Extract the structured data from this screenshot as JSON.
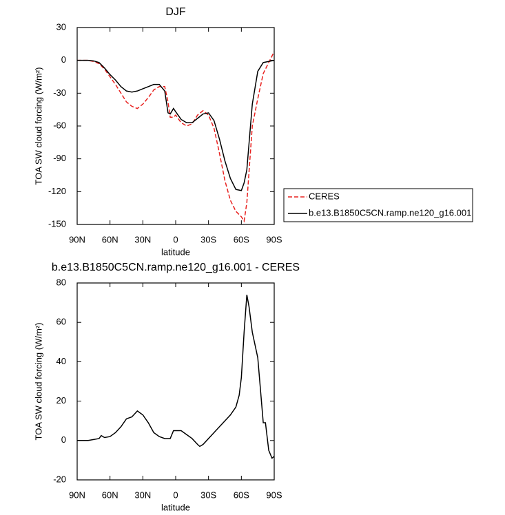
{
  "chart_data": [
    {
      "type": "line",
      "title": "DJF",
      "xlabel": "latitude",
      "ylabel": "TOA SW cloud forcing (W/m²)",
      "x": [
        90,
        85,
        80,
        75,
        70,
        65,
        60,
        55,
        50,
        45,
        40,
        35,
        30,
        25,
        20,
        15,
        10,
        7,
        5,
        2,
        0,
        -5,
        -10,
        -15,
        -20,
        -25,
        -30,
        -35,
        -40,
        -45,
        -50,
        -55,
        -60,
        -62.5,
        -65,
        -70,
        -75,
        -80,
        -85,
        -90
      ],
      "series": [
        {
          "name": "CERES",
          "color": "#e8211f",
          "dashed": true,
          "values": [
            0,
            0,
            0,
            -1,
            -3,
            -8,
            -15,
            -22,
            -30,
            -38,
            -42,
            -44,
            -40,
            -34,
            -27,
            -24,
            -24,
            -38,
            -52,
            -52,
            -50,
            -57,
            -60,
            -58,
            -50,
            -46,
            -50,
            -62,
            -85,
            -110,
            -128,
            -138,
            -143,
            -147,
            -130,
            -60,
            -35,
            -12,
            -2,
            8
          ]
        },
        {
          "name": "b.e13.B1850C5CN.ramp.ne120_g16.001",
          "color": "#000000",
          "dashed": false,
          "values": [
            0,
            0,
            0,
            -0.5,
            -2,
            -7,
            -13,
            -18,
            -24,
            -28,
            -29,
            -28,
            -26,
            -24,
            -22,
            -22,
            -28,
            -48,
            -49,
            -44,
            -47,
            -54,
            -57,
            -57,
            -53,
            -49,
            -48,
            -55,
            -72,
            -92,
            -108,
            -118,
            -119,
            -112,
            -100,
            -40,
            -10,
            -2,
            -1,
            0
          ]
        }
      ],
      "xlim": [
        90,
        -90
      ],
      "xticks": [
        {
          "value": 90,
          "label": "90N"
        },
        {
          "value": 60,
          "label": "60N"
        },
        {
          "value": 30,
          "label": "30N"
        },
        0,
        {
          "value": -30,
          "label": "30S"
        },
        {
          "value": -60,
          "label": "60S"
        },
        {
          "value": -90,
          "label": "90S"
        }
      ],
      "ylim": [
        -150,
        30
      ],
      "yticks": [
        30,
        0,
        -30,
        -60,
        -90,
        -120,
        -150
      ],
      "legend": "right"
    },
    {
      "type": "line",
      "title": "b.e13.B1850C5CN.ramp.ne120_g16.001 - CERES",
      "xlabel": "latitude",
      "ylabel": "TOA SW cloud forcing (W/m²)",
      "x": [
        90,
        85,
        80,
        75,
        70,
        68,
        65,
        60,
        55,
        50,
        45,
        40,
        35,
        30,
        25,
        20,
        15,
        10,
        5,
        2,
        0,
        -5,
        -10,
        -15,
        -20,
        -22,
        -25,
        -30,
        -35,
        -40,
        -45,
        -50,
        -55,
        -58,
        -60,
        -62.5,
        -65,
        -67,
        -70,
        -75,
        -80,
        -82,
        -85,
        -88,
        -90
      ],
      "values": [
        0,
        0,
        0,
        0.5,
        1,
        2.5,
        1.5,
        2,
        4,
        7,
        11,
        12,
        15,
        13,
        9,
        4,
        2,
        1,
        1,
        5,
        5,
        5,
        3,
        1,
        -2,
        -3,
        -2,
        1,
        4,
        7,
        10,
        13,
        17,
        23,
        32,
        55,
        74,
        68,
        55,
        42,
        9,
        9,
        -5,
        -9,
        -8
      ],
      "color": "#000000",
      "xlim": [
        90,
        -90
      ],
      "xticks": [
        {
          "value": 90,
          "label": "90N"
        },
        {
          "value": 60,
          "label": "60N"
        },
        {
          "value": 30,
          "label": "30N"
        },
        0,
        {
          "value": -30,
          "label": "30S"
        },
        {
          "value": -60,
          "label": "60S"
        },
        {
          "value": -90,
          "label": "90S"
        }
      ],
      "ylim": [
        -20,
        80
      ],
      "yticks": [
        -20,
        0,
        20,
        40,
        60,
        80
      ]
    }
  ]
}
